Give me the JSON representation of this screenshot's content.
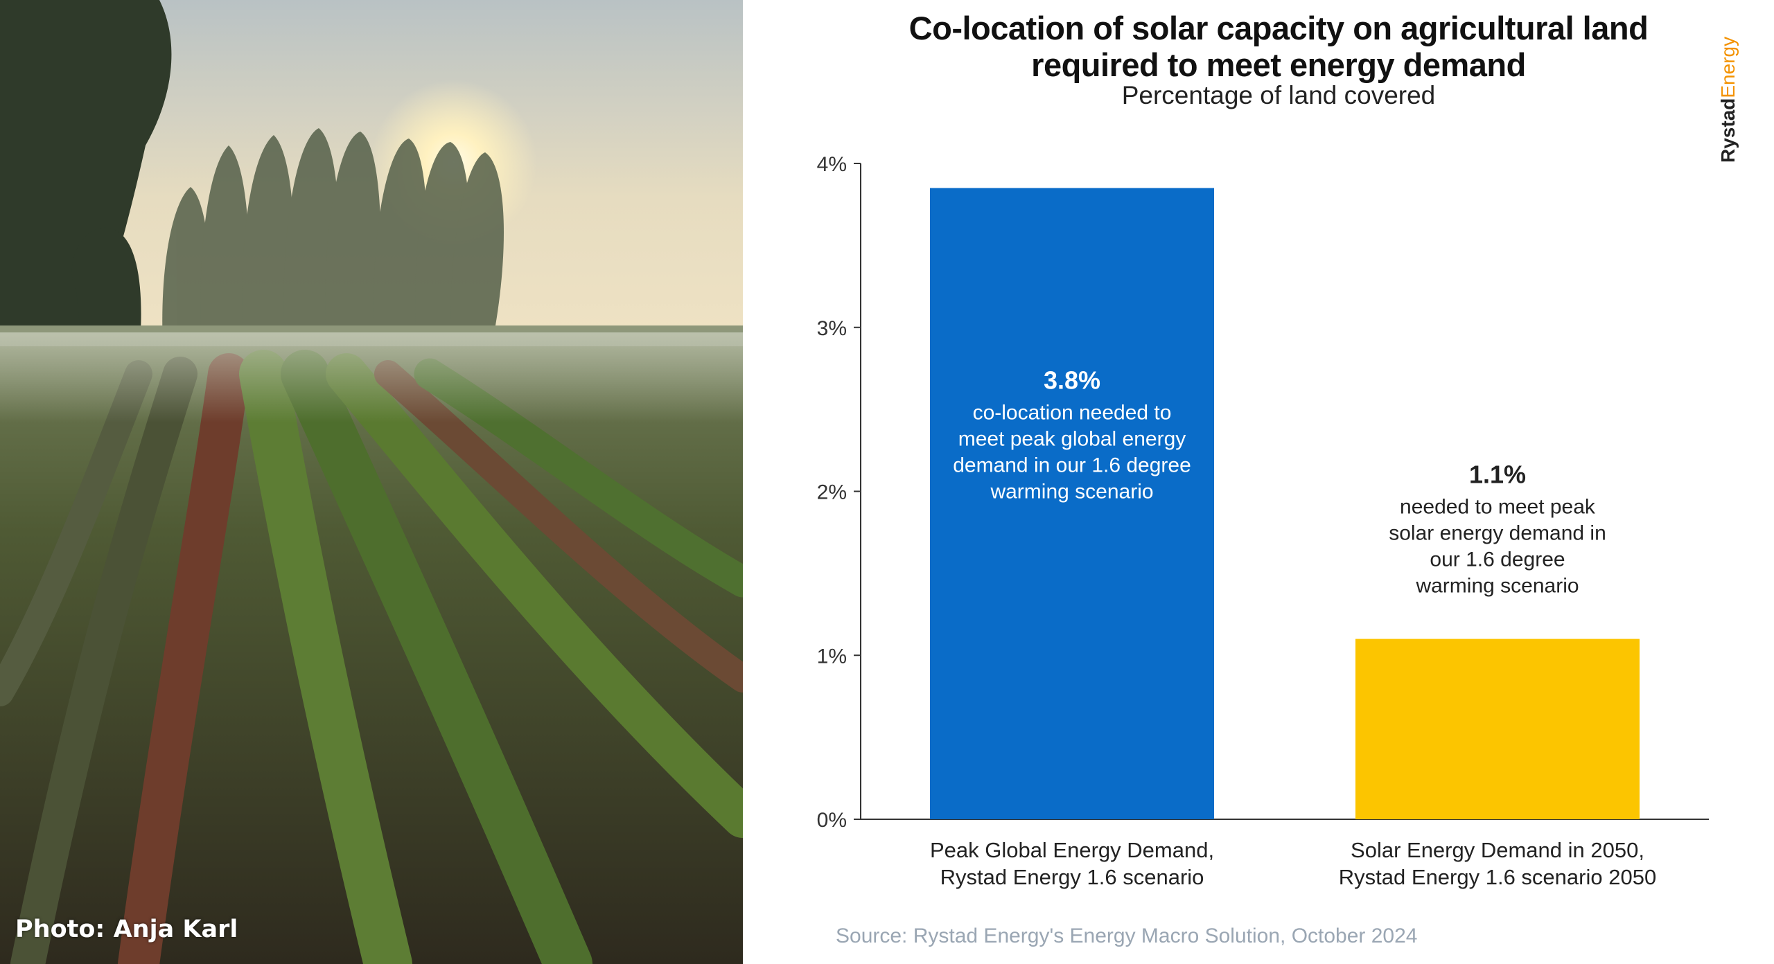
{
  "photo": {
    "credit": "Photo: Anja Karl"
  },
  "brand": {
    "name_part1": "Rystad",
    "name_part2": "Energy",
    "accent_color": "#F39200"
  },
  "chart_data": {
    "type": "bar",
    "title_line1": "Co-location of solar capacity on agricultural land",
    "title_line2": "required to meet energy demand",
    "subtitle": "Percentage of land covered",
    "source": "Source: Rystad Energy's Energy Macro Solution, October 2024",
    "y_unit": "%",
    "ylim": [
      0,
      4
    ],
    "y_ticks": [
      "0%",
      "1%",
      "2%",
      "3%",
      "4%"
    ],
    "grid": false,
    "legend": "none",
    "bars": [
      {
        "category_line1": "Peak Global Energy Demand,",
        "category_line2": "Rystad Energy 1.6 scenario",
        "value": 3.85,
        "color": "#0A6CC8",
        "label_value": "3.8%",
        "label_lines": [
          "co-location needed to",
          "meet peak global energy",
          "demand in our 1.6 degree",
          "warming scenario"
        ],
        "label_inside": true
      },
      {
        "category_line1": "Solar  Energy Demand in 2050,",
        "category_line2": "Rystad Energy 1.6 scenario 2050",
        "value": 1.1,
        "color": "#FCC500",
        "label_value": "1.1%",
        "label_lines": [
          "needed to meet peak",
          "solar energy demand in",
          "our 1.6 degree",
          "warming scenario"
        ],
        "label_inside": false
      }
    ]
  }
}
